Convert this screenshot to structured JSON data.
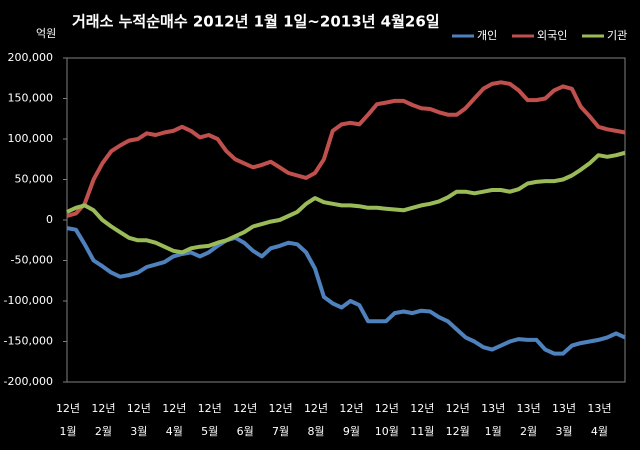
{
  "chart_data": {
    "type": "line",
    "title": "거래소  누적순매수 2012년 1월 1일~2013년 4월26일",
    "y_unit": "억원",
    "legend": "top-right",
    "grid": false,
    "ylim": [
      -200000,
      200000
    ],
    "yticks": [
      {
        "value": 200000,
        "label": "200,000"
      },
      {
        "value": 150000,
        "label": "150,000"
      },
      {
        "value": 100000,
        "label": "100,000"
      },
      {
        "value": 50000,
        "label": "50,000"
      },
      0,
      {
        "value": -50000,
        "label": "-50,000"
      },
      {
        "value": -100000,
        "label": "-100,000"
      },
      {
        "value": -150000,
        "label": "-150,000"
      },
      {
        "value": -200000,
        "label": "-200,000"
      }
    ],
    "categories": [
      [
        "12년",
        "1월"
      ],
      null,
      null,
      null,
      [
        "12년",
        "2월"
      ],
      null,
      null,
      null,
      [
        "12년",
        "3월"
      ],
      null,
      null,
      null,
      [
        "12년",
        "4월"
      ],
      null,
      null,
      null,
      [
        "12년",
        "5월"
      ],
      null,
      null,
      null,
      [
        "12년",
        "6월"
      ],
      null,
      null,
      null,
      [
        "12년",
        "7월"
      ],
      null,
      null,
      null,
      [
        "12년",
        "8월"
      ],
      null,
      null,
      null,
      [
        "12년",
        "9월"
      ],
      null,
      null,
      null,
      [
        "12년",
        "10월"
      ],
      null,
      null,
      null,
      [
        "12년",
        "11월"
      ],
      null,
      null,
      null,
      [
        "12년",
        "12월"
      ],
      null,
      null,
      null,
      [
        "13년",
        "1월"
      ],
      null,
      null,
      null,
      [
        "13년",
        "2월"
      ],
      null,
      null,
      null,
      [
        "13년",
        "3월"
      ],
      null,
      null,
      null,
      [
        "13년",
        "4월"
      ],
      null,
      null,
      null
    ],
    "series": [
      {
        "name": "개인",
        "color": "#4f81bd",
        "values": [
          -10000,
          -12000,
          -30000,
          -50000,
          -57000,
          -65000,
          -70000,
          -68000,
          -65000,
          -58000,
          -55000,
          -52000,
          -45000,
          -42000,
          -40000,
          -45000,
          -40000,
          -32000,
          -25000,
          -22000,
          -28000,
          -38000,
          -45000,
          -35000,
          -32000,
          -28000,
          -30000,
          -40000,
          -60000,
          -95000,
          -103000,
          -108000,
          -100000,
          -105000,
          -125000,
          -125000,
          -125000,
          -115000,
          -113000,
          -115000,
          -112000,
          -113000,
          -120000,
          -125000,
          -135000,
          -145000,
          -150000,
          -157000,
          -160000,
          -155000,
          -150000,
          -147000,
          -148000,
          -148000,
          -160000,
          -165000,
          -165000,
          -155000,
          -152000,
          -150000,
          -148000,
          -145000,
          -140000,
          -145000
        ]
      },
      {
        "name": "외국인",
        "color": "#c0504d",
        "values": [
          5000,
          8000,
          20000,
          50000,
          70000,
          85000,
          92000,
          98000,
          100000,
          107000,
          105000,
          108000,
          110000,
          115000,
          110000,
          102000,
          105000,
          100000,
          85000,
          75000,
          70000,
          65000,
          68000,
          72000,
          65000,
          58000,
          55000,
          52000,
          58000,
          75000,
          110000,
          118000,
          120000,
          118000,
          130000,
          143000,
          145000,
          147000,
          147000,
          142000,
          138000,
          137000,
          133000,
          130000,
          130000,
          138000,
          150000,
          162000,
          168000,
          170000,
          168000,
          160000,
          148000,
          148000,
          150000,
          160000,
          165000,
          162000,
          140000,
          128000,
          115000,
          112000,
          110000,
          108000
        ]
      },
      {
        "name": "기관",
        "color": "#9bbb59",
        "values": [
          10000,
          15000,
          18000,
          12000,
          0,
          -8000,
          -15000,
          -22000,
          -25000,
          -25000,
          -28000,
          -33000,
          -38000,
          -40000,
          -35000,
          -33000,
          -32000,
          -28000,
          -25000,
          -20000,
          -15000,
          -8000,
          -5000,
          -2000,
          0,
          5000,
          10000,
          20000,
          27000,
          22000,
          20000,
          18000,
          18000,
          17000,
          15000,
          15000,
          14000,
          13000,
          12000,
          15000,
          18000,
          20000,
          23000,
          28000,
          35000,
          35000,
          33000,
          35000,
          37000,
          37000,
          35000,
          38000,
          45000,
          47000,
          48000,
          48000,
          50000,
          55000,
          62000,
          70000,
          80000,
          78000,
          80000,
          83000
        ]
      }
    ]
  }
}
